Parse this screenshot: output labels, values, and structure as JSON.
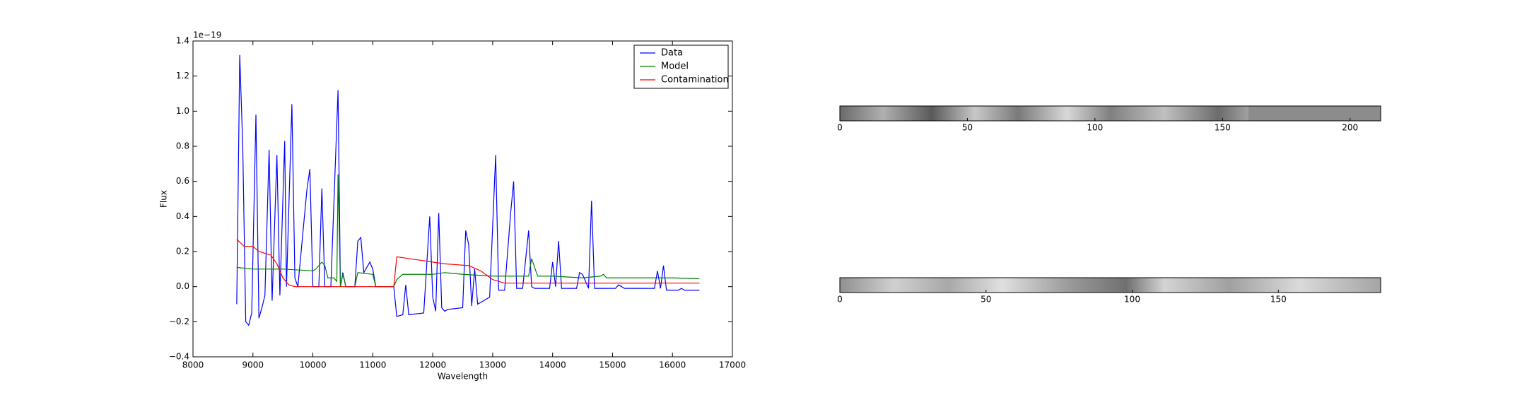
{
  "chart_data": [
    {
      "type": "line",
      "xlabel": "Wavelength",
      "ylabel": "Flux",
      "offset_text": "1e−19",
      "xlim": [
        8000,
        17000
      ],
      "xticks": [
        8000,
        9000,
        10000,
        11000,
        12000,
        13000,
        14000,
        15000,
        16000,
        17000
      ],
      "ylim": [
        -0.4,
        1.4
      ],
      "yticks": [
        {
          "value": -0.4,
          "label": "−0.4"
        },
        {
          "value": -0.2,
          "label": "−0.2"
        },
        {
          "value": 0,
          "label": "0.0"
        },
        0.2,
        0.4,
        0.6,
        0.8,
        {
          "value": 1,
          "label": "1.0"
        },
        1.2,
        1.4
      ],
      "legend": "upper right",
      "series": [
        {
          "name": "Data",
          "color": "#0000ff",
          "x": [
            8730,
            8780,
            8830,
            8880,
            8930,
            8980,
            9050,
            9100,
            9150,
            9200,
            9270,
            9320,
            9400,
            9450,
            9530,
            9560,
            9650,
            9700,
            9750,
            9900,
            9950,
            10000,
            10100,
            10150,
            10200,
            10300,
            10420,
            10460,
            10500,
            10550,
            10700,
            10750,
            10800,
            10850,
            10950,
            11000,
            11050,
            11350,
            11400,
            11500,
            11550,
            11600,
            11850,
            11950,
            12000,
            12050,
            12100,
            12150,
            12200,
            12250,
            12500,
            12550,
            12600,
            12650,
            12700,
            12750,
            12950,
            13050,
            13100,
            13200,
            13300,
            13350,
            13400,
            13500,
            13600,
            13650,
            13700,
            13950,
            14000,
            14050,
            14100,
            14150,
            14400,
            14450,
            14500,
            14600,
            14650,
            14700,
            15050,
            15100,
            15200,
            15700,
            15750,
            15800,
            15850,
            15900,
            16100,
            16150,
            16200,
            16450
          ],
          "values": [
            -0.1,
            1.32,
            0.8,
            -0.2,
            -0.22,
            -0.15,
            0.98,
            -0.18,
            -0.12,
            -0.05,
            0.78,
            -0.08,
            0.75,
            -0.05,
            0.83,
            0,
            1.04,
            0.05,
            0,
            0.55,
            0.67,
            0,
            0,
            0.56,
            0,
            0,
            1.12,
            0,
            0.08,
            0,
            0,
            0.26,
            0.28,
            0.08,
            0.14,
            0.1,
            0,
            0,
            -0.17,
            -0.16,
            0.01,
            -0.16,
            -0.15,
            0.4,
            -0.06,
            -0.14,
            0.42,
            -0.12,
            -0.14,
            -0.13,
            -0.12,
            0.32,
            0.24,
            -0.11,
            0.1,
            -0.1,
            -0.06,
            0.75,
            -0.02,
            -0.02,
            0.42,
            0.6,
            -0.01,
            -0.01,
            0.32,
            0,
            -0.01,
            -0.01,
            0.14,
            0,
            0.26,
            -0.01,
            -0.01,
            0.08,
            0.07,
            -0.01,
            0.49,
            -0.01,
            -0.01,
            0.01,
            -0.01,
            -0.01,
            0.09,
            -0.01,
            0.12,
            -0.02,
            -0.02,
            -0.01,
            -0.02,
            -0.02
          ]
        },
        {
          "name": "Model",
          "color": "#008000",
          "x": [
            8730,
            9000,
            9500,
            10000,
            10050,
            10150,
            10200,
            10250,
            10350,
            10400,
            10420,
            10460,
            10500,
            10550,
            10700,
            10750,
            11000,
            11050,
            11350,
            11400,
            11500,
            12000,
            12200,
            12500,
            13000,
            13600,
            13650,
            13750,
            14000,
            14500,
            14800,
            14850,
            14900,
            15500,
            16000,
            16450
          ],
          "values": [
            0.11,
            0.1,
            0.1,
            0.09,
            0.1,
            0.14,
            0.12,
            0.05,
            0.05,
            0.03,
            0.64,
            0,
            0.07,
            0,
            0,
            0.08,
            0.07,
            0,
            0,
            0.04,
            0.07,
            0.07,
            0.08,
            0.07,
            0.06,
            0.06,
            0.16,
            0.06,
            0.06,
            0.05,
            0.06,
            0.07,
            0.05,
            0.05,
            0.05,
            0.045
          ]
        },
        {
          "name": "Contamination",
          "color": "#ff0000",
          "x": [
            8730,
            8850,
            9000,
            9100,
            9300,
            9400,
            9500,
            9600,
            9700,
            10000,
            11350,
            11400,
            11600,
            12000,
            12200,
            12600,
            12800,
            13000,
            13200,
            14000,
            16450
          ],
          "values": [
            0.27,
            0.23,
            0.23,
            0.2,
            0.18,
            0.13,
            0.05,
            0.01,
            0,
            0,
            0,
            0.17,
            0.16,
            0.14,
            0.13,
            0.12,
            0.09,
            0.04,
            0.02,
            0.02,
            0.02
          ]
        }
      ]
    },
    {
      "type": "image",
      "xlim": [
        0,
        212
      ],
      "xticks": [
        0,
        50,
        100,
        150,
        200
      ]
    },
    {
      "type": "image",
      "xlim": [
        0,
        185
      ],
      "xticks": [
        0,
        50,
        100,
        150
      ]
    }
  ]
}
